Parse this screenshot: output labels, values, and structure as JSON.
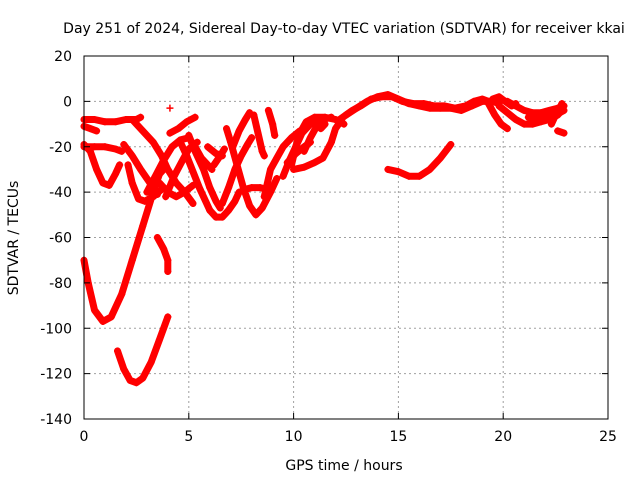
{
  "chart_data": {
    "type": "scatter",
    "title": "Day 251 of 2024, Sidereal Day-to-day VTEC variation (SDTVAR) for receiver kkai",
    "xlabel": "GPS time / hours",
    "ylabel": "SDTVAR / TECUs",
    "xlim": [
      0,
      25
    ],
    "ylim": [
      -140,
      20
    ],
    "xticks": [
      0,
      5,
      10,
      15,
      20,
      25
    ],
    "yticks": [
      -140,
      -120,
      -100,
      -80,
      -60,
      -40,
      -20,
      0,
      20
    ],
    "grid": true,
    "marker": "+",
    "color": "#ff0000",
    "series": [
      {
        "points": [
          [
            0.0,
            -8
          ],
          [
            0.5,
            -8
          ],
          [
            1.0,
            -9
          ],
          [
            1.5,
            -9
          ],
          [
            2.0,
            -8
          ],
          [
            2.5,
            -8
          ],
          [
            2.7,
            -7
          ]
        ]
      },
      {
        "points": [
          [
            0.0,
            -11
          ],
          [
            0.3,
            -12
          ],
          [
            0.6,
            -13
          ]
        ]
      },
      {
        "points": [
          [
            0.0,
            -19
          ],
          [
            0.3,
            -22
          ],
          [
            0.6,
            -30
          ],
          [
            0.9,
            -36
          ],
          [
            1.2,
            -37
          ],
          [
            1.5,
            -32
          ],
          [
            1.7,
            -28
          ]
        ]
      },
      {
        "points": [
          [
            0.0,
            -70
          ],
          [
            0.2,
            -80
          ],
          [
            0.5,
            -92
          ],
          [
            0.9,
            -97
          ],
          [
            1.3,
            -95
          ],
          [
            1.8,
            -85
          ],
          [
            2.3,
            -70
          ],
          [
            2.8,
            -55
          ],
          [
            3.3,
            -40
          ],
          [
            3.6,
            -32
          ],
          [
            3.8,
            -30
          ]
        ]
      },
      {
        "points": [
          [
            0.0,
            -20
          ],
          [
            0.5,
            -20
          ],
          [
            1.0,
            -20
          ],
          [
            1.5,
            -21
          ],
          [
            1.8,
            -22
          ]
        ]
      },
      {
        "points": [
          [
            1.6,
            -110
          ],
          [
            1.9,
            -118
          ],
          [
            2.2,
            -123
          ],
          [
            2.5,
            -124
          ],
          [
            2.8,
            -122
          ],
          [
            3.2,
            -115
          ],
          [
            3.6,
            -105
          ],
          [
            4.0,
            -95
          ]
        ]
      },
      {
        "points": [
          [
            1.9,
            -19
          ],
          [
            2.3,
            -24
          ],
          [
            2.7,
            -30
          ],
          [
            3.0,
            -34
          ],
          [
            3.3,
            -38
          ],
          [
            3.5,
            -41
          ]
        ]
      },
      {
        "points": [
          [
            2.1,
            -28
          ],
          [
            2.3,
            -36
          ],
          [
            2.6,
            -43
          ],
          [
            2.9,
            -44
          ],
          [
            3.3,
            -42
          ],
          [
            3.8,
            -38
          ]
        ]
      },
      {
        "points": [
          [
            2.3,
            -8
          ],
          [
            2.8,
            -13
          ],
          [
            3.3,
            -18
          ],
          [
            3.7,
            -24
          ],
          [
            4.0,
            -30
          ],
          [
            4.4,
            -36
          ],
          [
            4.8,
            -40
          ],
          [
            5.2,
            -45
          ]
        ]
      },
      {
        "points": [
          [
            3.0,
            -40
          ],
          [
            3.4,
            -33
          ],
          [
            3.8,
            -26
          ],
          [
            4.2,
            -20
          ],
          [
            4.6,
            -17
          ],
          [
            5.0,
            -16
          ]
        ]
      },
      {
        "points": [
          [
            3.5,
            -60
          ],
          [
            3.8,
            -65
          ],
          [
            4.0,
            -70
          ],
          [
            4.0,
            -75
          ]
        ]
      },
      {
        "points": [
          [
            3.6,
            -36
          ],
          [
            4.0,
            -40
          ],
          [
            4.4,
            -42
          ],
          [
            4.8,
            -40
          ],
          [
            5.2,
            -37
          ]
        ]
      },
      {
        "points": [
          [
            3.9,
            -42
          ],
          [
            4.3,
            -33
          ],
          [
            4.7,
            -26
          ],
          [
            5.0,
            -21
          ],
          [
            5.4,
            -18
          ]
        ]
      },
      {
        "points": [
          [
            4.1,
            -3
          ]
        ]
      },
      {
        "points": [
          [
            4.1,
            -14
          ],
          [
            4.5,
            -12
          ],
          [
            4.9,
            -9
          ],
          [
            5.3,
            -7
          ]
        ]
      },
      {
        "points": [
          [
            4.6,
            -18
          ],
          [
            4.9,
            -24
          ],
          [
            5.2,
            -31
          ],
          [
            5.5,
            -38
          ],
          [
            5.8,
            -44
          ],
          [
            6.0,
            -48
          ]
        ]
      },
      {
        "points": [
          [
            5.0,
            -15
          ],
          [
            5.3,
            -22
          ],
          [
            5.7,
            -30
          ],
          [
            6.0,
            -38
          ],
          [
            6.3,
            -44
          ],
          [
            6.5,
            -47
          ]
        ]
      },
      {
        "points": [
          [
            5.3,
            -20
          ],
          [
            5.6,
            -25
          ],
          [
            5.9,
            -28
          ],
          [
            6.1,
            -30
          ]
        ]
      },
      {
        "points": [
          [
            5.9,
            -20
          ],
          [
            6.3,
            -23
          ],
          [
            6.6,
            -24
          ]
        ]
      },
      {
        "points": [
          [
            6.0,
            -48
          ],
          [
            6.3,
            -51
          ],
          [
            6.6,
            -51
          ],
          [
            6.9,
            -48
          ],
          [
            7.2,
            -44
          ],
          [
            7.4,
            -40
          ]
        ]
      },
      {
        "points": [
          [
            6.2,
            -28
          ],
          [
            6.5,
            -24
          ],
          [
            6.7,
            -21
          ]
        ]
      },
      {
        "points": [
          [
            6.6,
            -45
          ],
          [
            6.9,
            -38
          ],
          [
            7.2,
            -30
          ],
          [
            7.5,
            -24
          ],
          [
            7.8,
            -19
          ],
          [
            8.0,
            -16
          ]
        ]
      },
      {
        "points": [
          [
            6.8,
            -12
          ],
          [
            7.0,
            -18
          ],
          [
            7.3,
            -28
          ],
          [
            7.6,
            -38
          ],
          [
            7.9,
            -46
          ],
          [
            8.2,
            -50
          ],
          [
            8.5,
            -47
          ],
          [
            8.9,
            -40
          ],
          [
            9.2,
            -34
          ]
        ]
      },
      {
        "points": [
          [
            7.1,
            -20
          ],
          [
            7.4,
            -13
          ],
          [
            7.7,
            -8
          ],
          [
            7.9,
            -5
          ]
        ]
      },
      {
        "points": [
          [
            7.6,
            -39
          ],
          [
            8.0,
            -38
          ],
          [
            8.4,
            -38
          ],
          [
            8.8,
            -39
          ]
        ]
      },
      {
        "points": [
          [
            8.1,
            -6
          ],
          [
            8.3,
            -14
          ],
          [
            8.5,
            -22
          ],
          [
            8.6,
            -24
          ]
        ]
      },
      {
        "points": [
          [
            8.6,
            -42
          ],
          [
            8.9,
            -30
          ],
          [
            9.2,
            -25
          ],
          [
            9.5,
            -20
          ],
          [
            9.9,
            -16
          ],
          [
            10.3,
            -13
          ]
        ]
      },
      {
        "points": [
          [
            8.8,
            -4
          ],
          [
            9.0,
            -10
          ],
          [
            9.1,
            -15
          ]
        ]
      },
      {
        "points": [
          [
            9.5,
            -33
          ],
          [
            9.8,
            -26
          ],
          [
            10.1,
            -20
          ],
          [
            10.4,
            -14
          ],
          [
            10.8,
            -10
          ],
          [
            11.2,
            -8
          ]
        ]
      },
      {
        "points": [
          [
            9.7,
            -27
          ],
          [
            10.1,
            -23
          ],
          [
            10.5,
            -20
          ],
          [
            10.8,
            -18
          ]
        ]
      },
      {
        "points": [
          [
            9.9,
            -28
          ],
          [
            10.1,
            -20
          ],
          [
            10.3,
            -14
          ],
          [
            10.6,
            -9
          ],
          [
            11.0,
            -7
          ],
          [
            11.5,
            -7
          ],
          [
            12.0,
            -8
          ],
          [
            12.4,
            -10
          ]
        ]
      },
      {
        "points": [
          [
            10.0,
            -30
          ],
          [
            10.5,
            -29
          ],
          [
            11.0,
            -27
          ],
          [
            11.4,
            -25
          ],
          [
            11.8,
            -18
          ],
          [
            12.0,
            -12
          ],
          [
            12.3,
            -8
          ]
        ]
      },
      {
        "points": [
          [
            10.5,
            -22
          ],
          [
            10.8,
            -16
          ],
          [
            11.1,
            -11
          ],
          [
            11.4,
            -8
          ],
          [
            11.8,
            -7
          ]
        ]
      },
      {
        "points": [
          [
            11.3,
            -12
          ],
          [
            11.5,
            -10
          ]
        ]
      },
      {
        "points": [
          [
            12.2,
            -8
          ],
          [
            12.5,
            -6
          ],
          [
            12.8,
            -4
          ],
          [
            13.2,
            -2
          ],
          [
            13.7,
            1
          ],
          [
            14.2,
            2
          ],
          [
            14.7,
            2
          ],
          [
            15.2,
            0
          ],
          [
            15.7,
            -1
          ],
          [
            16.2,
            -1
          ],
          [
            16.7,
            -2
          ],
          [
            17.2,
            -2
          ],
          [
            17.7,
            -3
          ],
          [
            18.2,
            -2
          ],
          [
            18.6,
            0
          ],
          [
            19.0,
            1
          ],
          [
            19.3,
            0
          ]
        ]
      },
      {
        "points": [
          [
            12.5,
            -6
          ],
          [
            13.0,
            -3
          ],
          [
            13.5,
            0
          ],
          [
            14.0,
            2
          ],
          [
            14.5,
            3
          ],
          [
            15.0,
            1
          ],
          [
            15.5,
            -1
          ],
          [
            16.0,
            -2
          ],
          [
            16.5,
            -3
          ],
          [
            17.0,
            -3
          ],
          [
            17.5,
            -3
          ],
          [
            18.0,
            -4
          ],
          [
            18.5,
            -2
          ]
        ]
      },
      {
        "points": [
          [
            14.5,
            -30
          ],
          [
            15.0,
            -31
          ],
          [
            15.5,
            -33
          ],
          [
            16.0,
            -33
          ],
          [
            16.5,
            -30
          ],
          [
            17.0,
            -25
          ],
          [
            17.5,
            -19
          ]
        ]
      },
      {
        "points": [
          [
            18.5,
            -2
          ],
          [
            19.0,
            0
          ],
          [
            19.5,
            0
          ],
          [
            19.8,
            -1
          ]
        ]
      },
      {
        "points": [
          [
            19.3,
            -1
          ],
          [
            19.6,
            -6
          ],
          [
            19.9,
            -10
          ],
          [
            20.2,
            -12
          ]
        ]
      },
      {
        "points": [
          [
            19.5,
            1
          ],
          [
            19.8,
            2
          ],
          [
            20.1,
            0
          ],
          [
            20.4,
            -2
          ],
          [
            20.6,
            -1
          ]
        ]
      },
      {
        "points": [
          [
            19.8,
            -2
          ],
          [
            20.2,
            -5
          ],
          [
            20.6,
            -8
          ],
          [
            21.0,
            -10
          ],
          [
            21.4,
            -10
          ],
          [
            21.8,
            -9
          ],
          [
            22.2,
            -8
          ],
          [
            22.6,
            -6
          ],
          [
            22.8,
            -4
          ]
        ]
      },
      {
        "points": [
          [
            20.2,
            0
          ],
          [
            20.6,
            -2
          ],
          [
            21.0,
            -4
          ],
          [
            21.4,
            -5
          ],
          [
            21.8,
            -5
          ],
          [
            22.2,
            -4
          ],
          [
            22.6,
            -3
          ],
          [
            22.9,
            -2
          ]
        ]
      },
      {
        "points": [
          [
            21.2,
            -7
          ],
          [
            21.5,
            -8
          ],
          [
            21.8,
            -8
          ],
          [
            22.1,
            -7
          ],
          [
            22.4,
            -6
          ],
          [
            22.7,
            -5
          ],
          [
            22.9,
            -4
          ]
        ]
      },
      {
        "points": [
          [
            22.3,
            -10
          ],
          [
            22.5,
            -6
          ],
          [
            22.7,
            -3
          ],
          [
            22.8,
            -1
          ]
        ]
      },
      {
        "points": [
          [
            22.6,
            -13
          ],
          [
            22.9,
            -14
          ]
        ]
      }
    ]
  }
}
